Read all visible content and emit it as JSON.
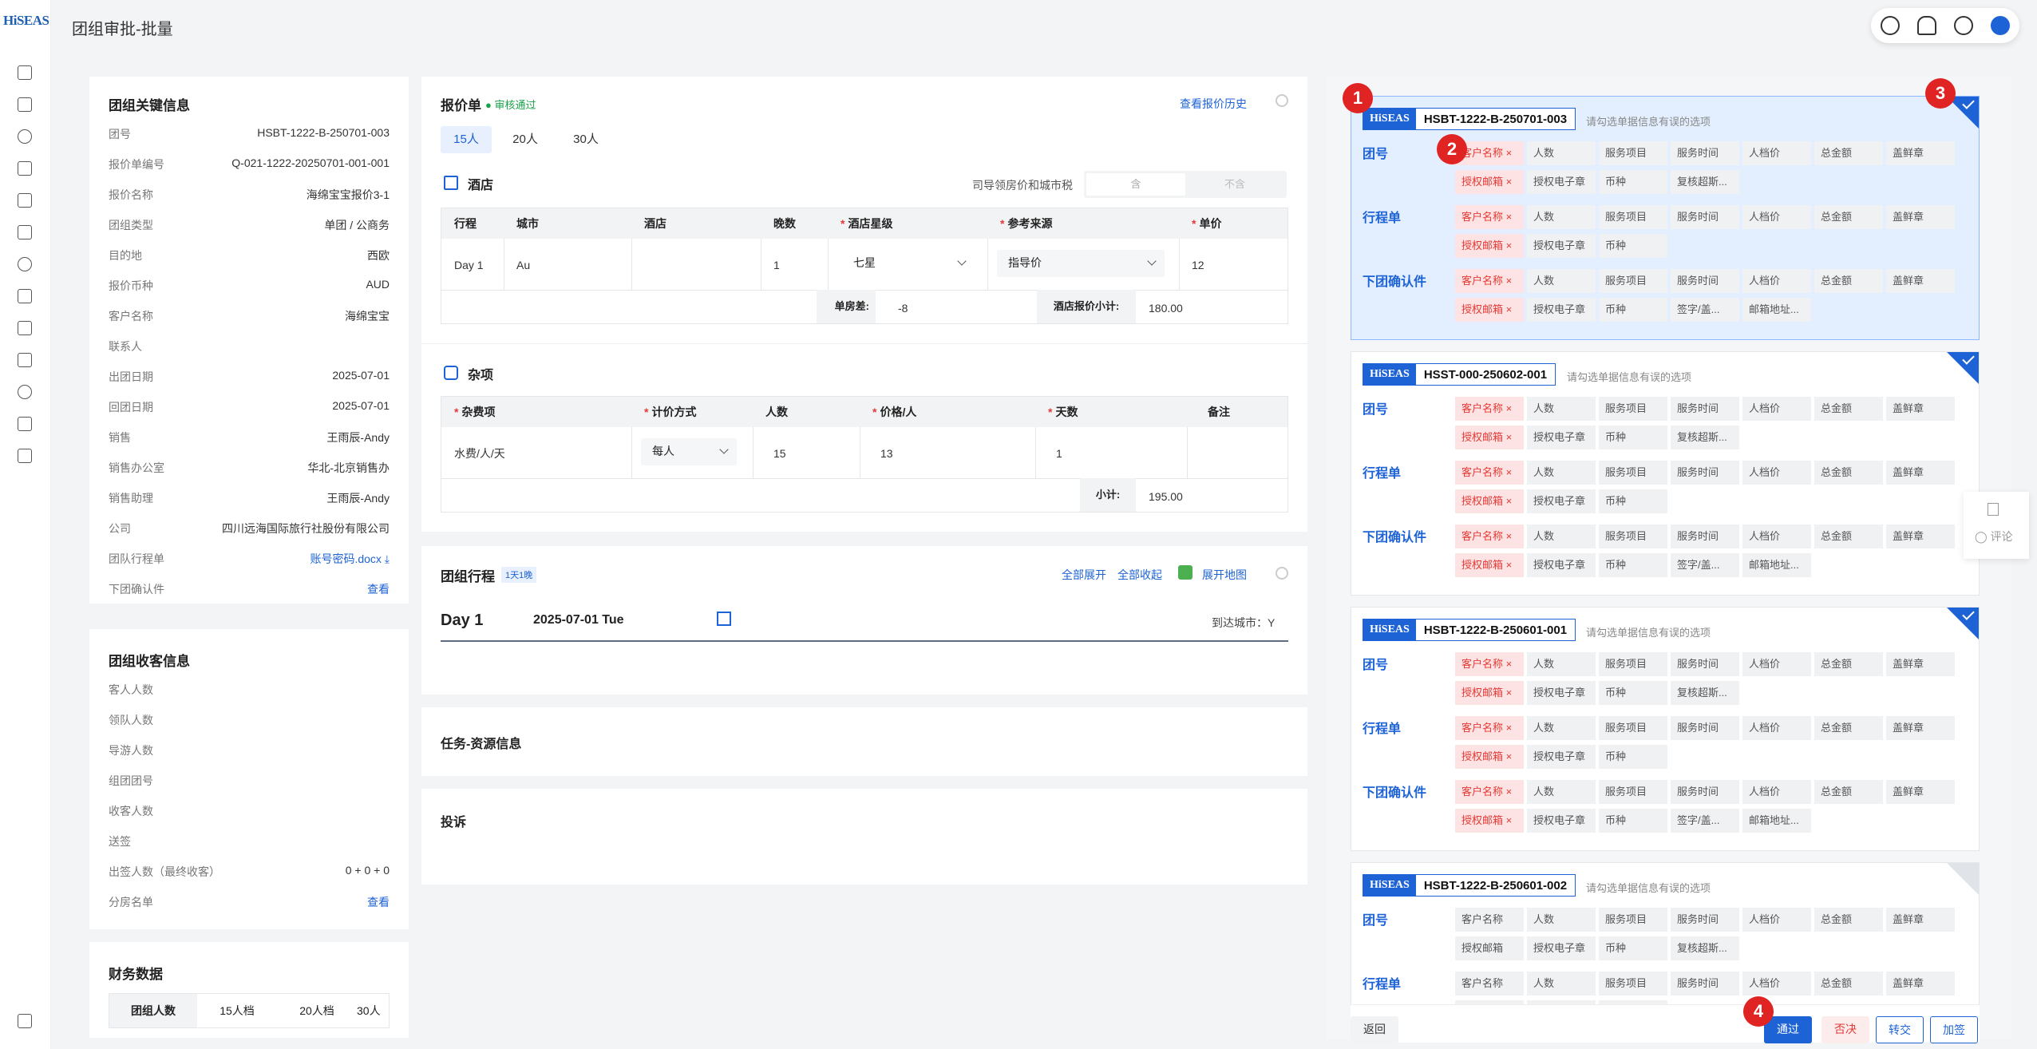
{
  "app": {
    "logo_main": "HiSEAS",
    "page_title": "团组审批-批量"
  },
  "key_info": {
    "title": "团组关键信息",
    "rows": [
      {
        "label": "团号",
        "value": "HSBT-1222-B-250701-003"
      },
      {
        "label": "报价单编号",
        "value": "Q-021-1222-20250701-001-001"
      },
      {
        "label": "报价名称",
        "value": "海绵宝宝报价3-1"
      },
      {
        "label": "团组类型",
        "value": "单团 / 公商务"
      },
      {
        "label": "目的地",
        "value": "西欧"
      },
      {
        "label": "报价币种",
        "value": "AUD"
      },
      {
        "label": "客户名称",
        "value": "海绵宝宝"
      },
      {
        "label": "联系人",
        "value": ""
      },
      {
        "label": "出团日期",
        "value": "2025-07-01"
      },
      {
        "label": "回团日期",
        "value": "2025-07-01"
      },
      {
        "label": "销售",
        "value": "王雨辰-Andy"
      },
      {
        "label": "销售办公室",
        "value": "华北-北京销售办"
      },
      {
        "label": "销售助理",
        "value": "王雨辰-Andy"
      },
      {
        "label": "公司",
        "value": "四川远海国际旅行社股份有限公司"
      },
      {
        "label": "团队行程单",
        "value": "账号密码.docx"
      },
      {
        "label": "下团确认件",
        "value": "查看"
      }
    ]
  },
  "receive_info": {
    "title": "团组收客信息",
    "rows": [
      {
        "label": "客人人数",
        "value": ""
      },
      {
        "label": "领队人数",
        "value": ""
      },
      {
        "label": "导游人数",
        "value": ""
      },
      {
        "label": "组团团号",
        "value": ""
      },
      {
        "label": "收客人数",
        "value": ""
      },
      {
        "label": "送签",
        "value": ""
      },
      {
        "label": "出签人数（最终收客）",
        "value": "0 + 0 + 0"
      },
      {
        "label": "分房名单",
        "value": "查看"
      }
    ]
  },
  "finance": {
    "title": "财务数据",
    "tabs": [
      "团组人数",
      "15人档",
      "20人档",
      "30人"
    ]
  },
  "quote": {
    "title": "报价单",
    "status": "审核通过",
    "history_link": "查看报价历史",
    "pax_tabs": [
      "15人",
      "20人",
      "30人"
    ],
    "hotel": {
      "title": "酒店",
      "tax_label": "司导领房价和城市税",
      "tax_opt_on": "含",
      "tax_opt_off": "不含",
      "headers": [
        "行程",
        "城市",
        "酒店",
        "晚数",
        "酒店星级",
        "参考来源",
        "单价"
      ],
      "row": {
        "day": "Day 1",
        "city": "Au",
        "hotel": "",
        "nights": "1",
        "star": "七星",
        "source": "指导价",
        "price": "12"
      },
      "diff_label": "单房差:",
      "diff_value": "-8",
      "subtotal_label": "酒店报价小计:",
      "subtotal_value": "180.00"
    },
    "misc": {
      "title": "杂项",
      "headers": [
        "杂费项",
        "计价方式",
        "人数",
        "价格/人",
        "天数",
        "备注"
      ],
      "row": {
        "item": "水费/人/天",
        "method": "每人",
        "pax": "15",
        "price": "13",
        "days": "1",
        "note": ""
      },
      "subtotal_label": "小计:",
      "subtotal_value": "195.00"
    }
  },
  "itinerary": {
    "title": "团组行程",
    "badge": "1天1晚",
    "expand_all": "全部展开",
    "collapse_all": "全部收起",
    "map": "展开地图",
    "day": "Day 1",
    "date": "2025-07-01 Tue",
    "arrive": "到达城市：Y"
  },
  "tasks": {
    "title": "任务-资源信息"
  },
  "complaint": {
    "title": "投诉"
  },
  "review": {
    "hint": "请勾选单据信息有误的选项",
    "brand": "HiSEAS",
    "row_labels": [
      "团号",
      "行程单",
      "下团确认件"
    ],
    "chips_a1": [
      "客户名称",
      "人数",
      "服务项目",
      "服务时间",
      "人档价",
      "总金额",
      "盖鲜章"
    ],
    "chips_a2": [
      "授权邮箱",
      "授权电子章",
      "币种",
      "复核超斯..."
    ],
    "chips_b2": [
      "授权邮箱",
      "授权电子章",
      "币种"
    ],
    "chips_c2": [
      "授权邮箱",
      "授权电子章",
      "币种",
      "签字/盖...",
      "邮箱地址..."
    ],
    "cards": [
      {
        "group": "HSBT-1222-B-250701-003"
      },
      {
        "group": "HSST-000-250602-001"
      },
      {
        "group": "HSBT-1222-B-250601-001"
      },
      {
        "group": "HSBT-1222-B-250601-002"
      }
    ],
    "markers": [
      "1",
      "2",
      "3",
      "4"
    ]
  },
  "side_float": {
    "comment": "评论"
  },
  "footer": {
    "back": "返回",
    "pass": "通过",
    "reject": "否决",
    "transfer": "转交",
    "add_sign": "加签"
  }
}
